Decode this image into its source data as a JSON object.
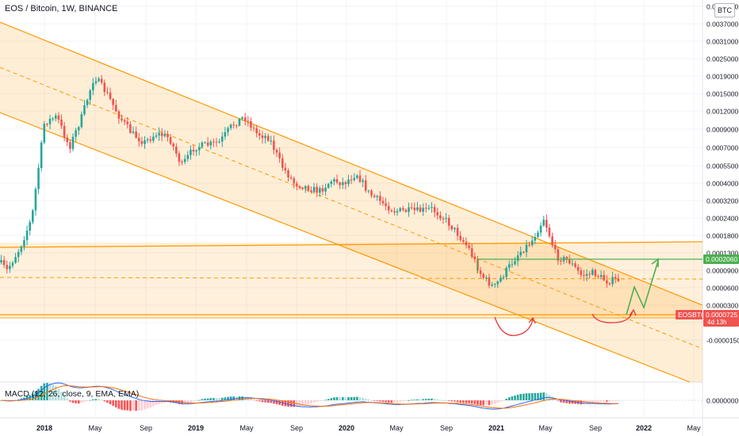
{
  "header": {
    "title": "EOS / Bitcoin, 1W, BINANCE",
    "unit_badge": "BTC"
  },
  "price_badges": {
    "target": {
      "text": "0.0002060",
      "color": "#4caf50"
    },
    "symbol": {
      "text": "EOSBTC",
      "color": "#ef5350"
    },
    "current": {
      "text": "0.0000725",
      "color": "#ef5350"
    },
    "countdown": {
      "text": "4d 13h",
      "color": "#ef5350"
    }
  },
  "macd": {
    "label": "MACD (12, 26, close, 9, EMA, EMA)",
    "zero_label": "0.0000000"
  },
  "chart_data": {
    "type": "candlestick",
    "symbol": "EOSBTC",
    "interval": "1W",
    "exchange": "BINANCE",
    "y_scale": "log",
    "y_ticks": [
      "0.0045500",
      "0.0037000",
      "0.0031000",
      "0.0025000",
      "0.0019000",
      "0.0015000",
      "0.0012000",
      "0.0009000",
      "0.0007000",
      "0.0005500",
      "0.0004000",
      "0.0003200",
      "0.0002400",
      "0.0001800",
      "0.0001300",
      "0.0000900",
      "0.0000600",
      "0.0000300",
      "0.0000050",
      "-0.0000150"
    ],
    "x_ticks": [
      "2018",
      "May",
      "Sep",
      "2019",
      "May",
      "Sep",
      "2020",
      "May",
      "Sep",
      "2021",
      "May",
      "Sep",
      "2022",
      "May"
    ],
    "price_path": [
      [
        "2017-08",
        0.00016
      ],
      [
        "2017-10",
        9e-05
      ],
      [
        "2017-11",
        0.00014
      ],
      [
        "2017-12",
        0.00024
      ],
      [
        "2018-01",
        0.001
      ],
      [
        "2018-02",
        0.0011
      ],
      [
        "2018-03",
        0.0007
      ],
      [
        "2018-04",
        0.0011
      ],
      [
        "2018-05",
        0.0019
      ],
      [
        "2018-06",
        0.0015
      ],
      [
        "2018-07",
        0.0011
      ],
      [
        "2018-08",
        0.00085
      ],
      [
        "2018-09",
        0.00075
      ],
      [
        "2018-10",
        0.00085
      ],
      [
        "2018-11",
        0.0008
      ],
      [
        "2018-12",
        0.00055
      ],
      [
        "2019-01",
        0.0007
      ],
      [
        "2019-03",
        0.00075
      ],
      [
        "2019-04",
        0.00095
      ],
      [
        "2019-05",
        0.0011
      ],
      [
        "2019-06",
        0.00085
      ],
      [
        "2019-07",
        0.0008
      ],
      [
        "2019-08",
        0.00055
      ],
      [
        "2019-09",
        0.0004
      ],
      [
        "2019-10",
        0.00038
      ],
      [
        "2019-11",
        0.00036
      ],
      [
        "2019-12",
        0.00042
      ],
      [
        "2020-01",
        0.0004
      ],
      [
        "2020-02",
        0.00048
      ],
      [
        "2020-03",
        0.00035
      ],
      [
        "2020-05",
        0.00027
      ],
      [
        "2020-07",
        0.00027
      ],
      [
        "2020-08",
        0.00028
      ],
      [
        "2020-09",
        0.00024
      ],
      [
        "2020-10",
        0.00019
      ],
      [
        "2020-11",
        0.00014
      ],
      [
        "2020-12",
        8e-05
      ],
      [
        "2021-01",
        6e-05
      ],
      [
        "2021-02",
        9e-05
      ],
      [
        "2021-03",
        0.00013
      ],
      [
        "2021-04",
        0.00016
      ],
      [
        "2021-05",
        0.00024
      ],
      [
        "2021-06",
        0.00012
      ],
      [
        "2021-07",
        0.00011
      ],
      [
        "2021-08",
        8e-05
      ],
      [
        "2021-09",
        8.5e-05
      ],
      [
        "2021-10",
        7e-05
      ],
      [
        "2021-11",
        7.25e-05
      ]
    ],
    "last_price": 7.25e-05,
    "target_level": 0.000206,
    "annotations": [
      "descending channel",
      "horizontal range",
      "double bottom arcs",
      "projected zigzag to target"
    ],
    "indicator": {
      "name": "MACD",
      "params": [
        12,
        26,
        "close",
        9,
        "EMA",
        "EMA"
      ]
    },
    "colors": {
      "up": "#26a69a",
      "down": "#ef5350",
      "channel": "#ff9800",
      "projection": "#4caf50",
      "arc": "#e53935"
    }
  }
}
